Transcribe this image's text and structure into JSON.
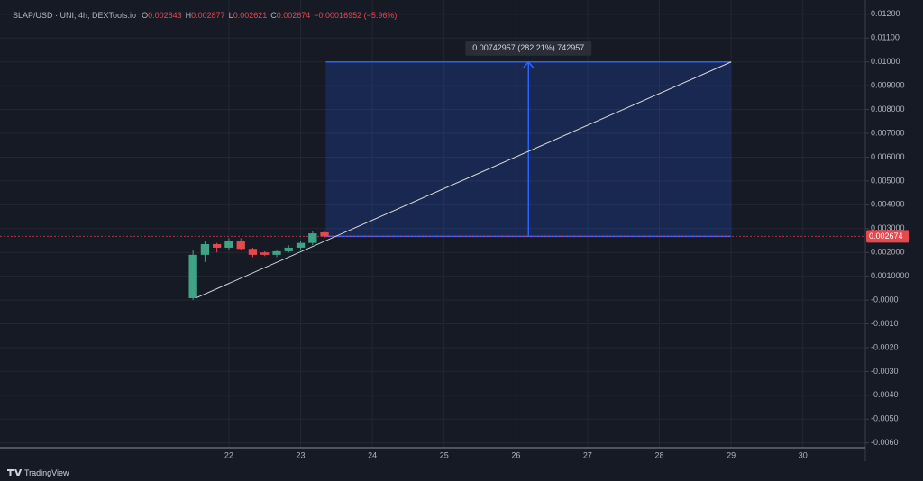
{
  "chart_data": {
    "type": "candlestick",
    "header": {
      "symbol": "SLAP/USD · UNI, 4h, DEXTools.io",
      "open_key": "O",
      "open": "0.002843",
      "high_key": "H",
      "high": "0.002877",
      "low_key": "L",
      "low": "0.002621",
      "close_key": "C",
      "close": "0.002674",
      "change": "−0.00016952 (−5.96%)"
    },
    "x": [
      21.5,
      21.667,
      21.833,
      22.0,
      22.167,
      22.333,
      22.5,
      22.667,
      22.833,
      23.0,
      23.167,
      23.333
    ],
    "open": [
      8e-05,
      0.0019,
      0.00235,
      0.0022,
      0.0025,
      0.00215,
      0.002,
      0.0019,
      0.00205,
      0.0022,
      0.0024,
      0.002843
    ],
    "high": [
      0.0021,
      0.0025,
      0.0024,
      0.0026,
      0.0026,
      0.0022,
      0.00205,
      0.0021,
      0.0023,
      0.0025,
      0.0029,
      0.002877
    ],
    "low": [
      0.0,
      0.0016,
      0.002,
      0.0021,
      0.0021,
      0.0018,
      0.00185,
      0.0018,
      0.002,
      0.0021,
      0.0023,
      0.002621
    ],
    "close": [
      0.0019,
      0.00235,
      0.0022,
      0.0025,
      0.00215,
      0.0019,
      0.0019,
      0.00205,
      0.0022,
      0.0024,
      0.0028,
      0.002674
    ],
    "up_color": "#3fa385",
    "down_color": "#e5484d",
    "xlim": [
      18.81,
      30.87
    ],
    "xticks": [
      22,
      23,
      24,
      25,
      26,
      27,
      28,
      29,
      30
    ],
    "ylim": [
      -0.0062,
      0.0126
    ],
    "yticks": [
      {
        "value": 0.012,
        "label": "0.01200"
      },
      {
        "value": 0.011,
        "label": "0.01100"
      },
      {
        "value": 0.01,
        "label": "0.01000"
      },
      {
        "value": 0.009,
        "label": "0.009000"
      },
      {
        "value": 0.008,
        "label": "0.008000"
      },
      {
        "value": 0.007,
        "label": "0.007000"
      },
      {
        "value": 0.006,
        "label": "0.006000"
      },
      {
        "value": 0.005,
        "label": "0.005000"
      },
      {
        "value": 0.004,
        "label": "0.004000"
      },
      {
        "value": 0.003,
        "label": "0.003000"
      },
      {
        "value": 0.002,
        "label": "0.002000"
      },
      {
        "value": 0.001,
        "label": "0.0010000"
      },
      {
        "value": 0,
        "label": "-0.0000"
      },
      {
        "value": -0.001,
        "label": "-0.0010"
      },
      {
        "value": -0.002,
        "label": "-0.0020"
      },
      {
        "value": -0.003,
        "label": "-0.0030"
      },
      {
        "value": -0.004,
        "label": "-0.0040"
      },
      {
        "value": -0.005,
        "label": "-0.0050"
      },
      {
        "value": -0.006,
        "label": "-0.0060"
      }
    ],
    "grid": true,
    "last_price": {
      "value": 0.002674,
      "label": "0.002674"
    },
    "annotations": {
      "measure": {
        "x": [
          23.35,
          29
        ],
        "y": [
          0.002674,
          0.01
        ],
        "label": "0.00742957 (282.21%) 742957",
        "color": "#2962ff"
      },
      "trend_line": {
        "x": [
          21.55,
          29
        ],
        "y": [
          0.0001,
          0.01
        ],
        "color": "#d8d8d8"
      }
    },
    "footer": "TradingView"
  }
}
